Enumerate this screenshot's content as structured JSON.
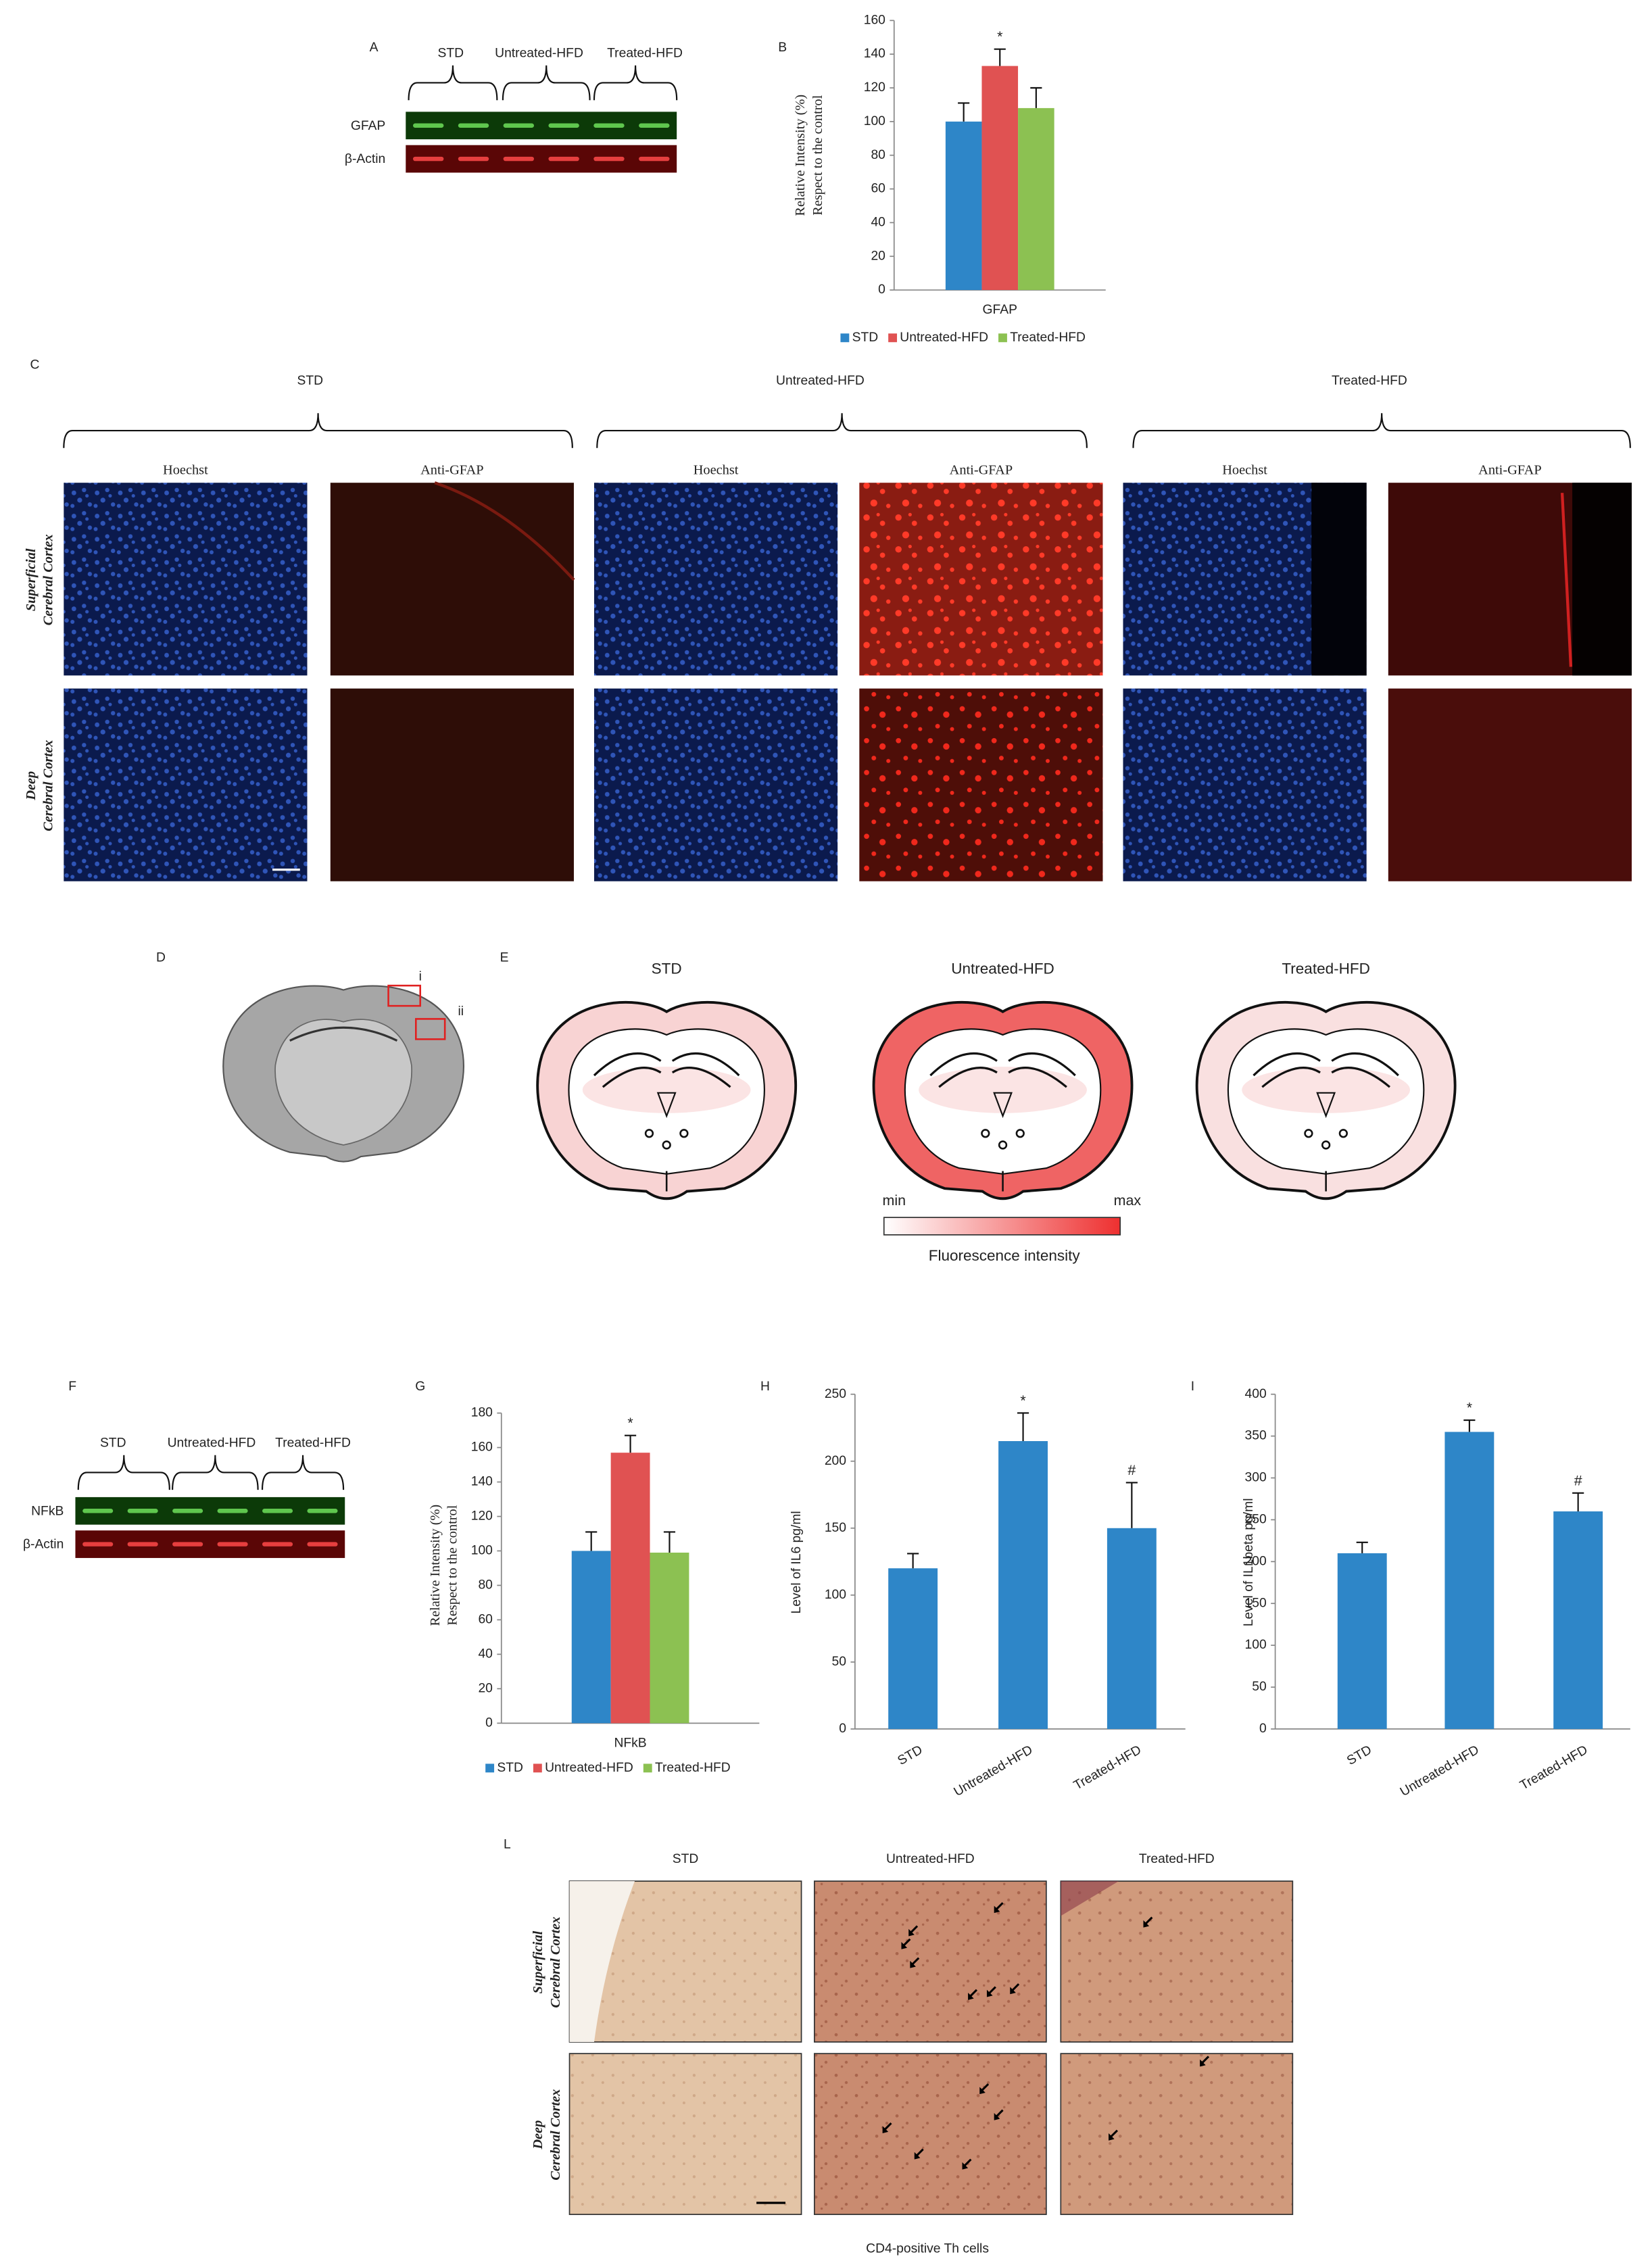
{
  "blot_A": {
    "label": "A",
    "groups": [
      "STD",
      "Untreated-HFD",
      "Treated-HFD"
    ],
    "bands": [
      "GFAP",
      "β-Actin"
    ]
  },
  "micrographs_C": {
    "label": "C",
    "groups": [
      "STD",
      "Untreated-HFD",
      "Treated-HFD"
    ],
    "stains": [
      "Hoechst",
      "Anti-GFAP"
    ],
    "rows": [
      [
        "Superficial",
        "Cerebral Cortex"
      ],
      [
        "Deep",
        "Cerebral Cortex"
      ]
    ]
  },
  "atlas_D": {
    "label": "D",
    "regions": [
      "i",
      "ii"
    ]
  },
  "map_E": {
    "label": "E",
    "groups": [
      "STD",
      "Untreated-HFD",
      "Treated-HFD"
    ],
    "scale": {
      "min": "min",
      "max": "max",
      "title": "Fluorescence intensity"
    }
  },
  "blot_F": {
    "label": "F",
    "groups": [
      "STD",
      "Untreated-HFD",
      "Treated-HFD"
    ],
    "bands": [
      "NFkB",
      "β-Actin"
    ]
  },
  "micrographs_L": {
    "label": "L",
    "groups": [
      "STD",
      "Untreated-HFD",
      "Treated-HFD"
    ],
    "rows": [
      [
        "Superficial",
        "Cerebral Cortex"
      ],
      [
        "Deep",
        "Cerebral Cortex"
      ]
    ],
    "caption": "CD4-positive Th cells"
  },
  "chart_data": [
    {
      "type": "bar",
      "label": "B",
      "categories": [
        "GFAP"
      ],
      "series": [
        {
          "name": "STD",
          "color": "#2e86c8",
          "values": [
            100
          ],
          "errors": [
            11
          ]
        },
        {
          "name": "Untreated-HFD",
          "color": "#e05252",
          "values": [
            133
          ],
          "errors": [
            10
          ]
        },
        {
          "name": "Treated-HFD",
          "color": "#8cc152",
          "values": [
            108
          ],
          "errors": [
            12
          ]
        }
      ],
      "ylim": [
        0,
        160
      ],
      "yticks": [
        0,
        20,
        40,
        60,
        80,
        100,
        120,
        140,
        160
      ],
      "ylabel": [
        "Relative Intensity (%)",
        "Respect to the control"
      ],
      "annotations": [
        {
          "text": "*",
          "series": "Untreated-HFD"
        }
      ],
      "legend": "bottom"
    },
    {
      "type": "bar",
      "label": "G",
      "categories": [
        "NFkB"
      ],
      "series": [
        {
          "name": "STD",
          "color": "#2e86c8",
          "values": [
            100
          ],
          "errors": [
            11
          ]
        },
        {
          "name": "Untreated-HFD",
          "color": "#e05252",
          "values": [
            157
          ],
          "errors": [
            10
          ]
        },
        {
          "name": "Treated-HFD",
          "color": "#8cc152",
          "values": [
            99
          ],
          "errors": [
            12
          ]
        }
      ],
      "ylim": [
        0,
        180
      ],
      "yticks": [
        0,
        20,
        40,
        60,
        80,
        100,
        120,
        140,
        160,
        180
      ],
      "ylabel": [
        "Relative Intensity (%)",
        "Respect to the control"
      ],
      "annotations": [
        {
          "text": "*",
          "series": "Untreated-HFD"
        }
      ],
      "legend": "bottom"
    },
    {
      "type": "bar",
      "label": "H",
      "categories": [
        "STD",
        "Untreated-HFD",
        "Treated-HFD"
      ],
      "values": [
        120,
        215,
        150
      ],
      "errors": [
        11,
        21,
        34
      ],
      "color": "#2e86c8",
      "ylim": [
        0,
        250
      ],
      "yticks": [
        0,
        50,
        100,
        150,
        200,
        250
      ],
      "ylabel": "Level of IL6 pg/ml",
      "annotations": [
        {
          "text": "*",
          "category": "Untreated-HFD"
        },
        {
          "text": "#",
          "category": "Treated-HFD"
        }
      ]
    },
    {
      "type": "bar",
      "label": "I",
      "categories": [
        "STD",
        "Untreated-HFD",
        "Treated-HFD"
      ],
      "values": [
        210,
        355,
        260
      ],
      "errors": [
        13,
        14,
        22
      ],
      "color": "#2e86c8",
      "ylim": [
        0,
        400
      ],
      "yticks": [
        0,
        50,
        100,
        150,
        200,
        250,
        300,
        350,
        400
      ],
      "ylabel": "Level of IL1beta pg/ml",
      "annotations": [
        {
          "text": "*",
          "category": "Untreated-HFD"
        },
        {
          "text": "#",
          "category": "Treated-HFD"
        }
      ]
    }
  ]
}
